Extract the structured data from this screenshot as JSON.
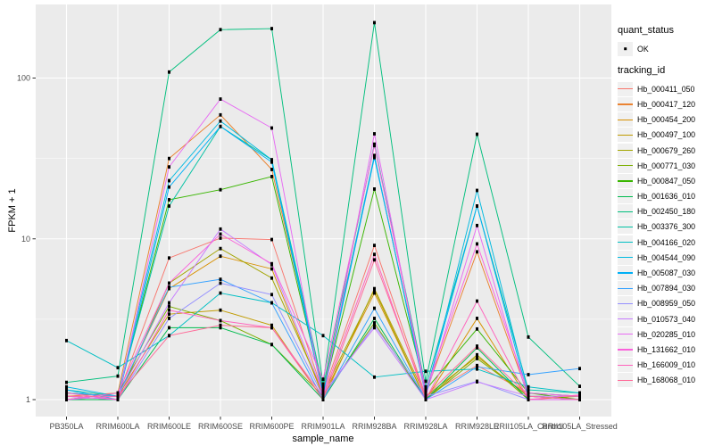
{
  "chart_data": {
    "type": "line",
    "title": "",
    "xlabel": "sample_name",
    "ylabel": "FPKM + 1",
    "yscale": "log10",
    "grid": true,
    "panel_bg": "#EBEBEB",
    "grid_color": "#FFFFFF",
    "tick_label_color": "#4D4D4D",
    "marker": "black-square",
    "ylim": [
      0.78,
      283
    ],
    "yticks": [
      1,
      10,
      100
    ],
    "ytick_labels": [
      "1",
      "10",
      "100"
    ],
    "minor_gridlines": [
      3.1623,
      31.623
    ],
    "legend_position": "right",
    "categories": [
      "PB350LA",
      "RRIM600LA",
      "RRIM600LE",
      "RRIM600SE",
      "RRIM600PE",
      "RRIM901LA",
      "RRIM928BA",
      "RRIM928LA",
      "RRIM928LE",
      "RRII105LA_Control",
      "RRII105LA_Stressed"
    ],
    "legend": {
      "quant_status": {
        "title": "quant_status",
        "items": [
          {
            "label": "OK",
            "marker": "black-point"
          }
        ]
      },
      "tracking": {
        "title": "tracking_id"
      }
    },
    "series": [
      {
        "name": "Hb_000411_050",
        "color": "#F8766D",
        "values": [
          1.1,
          1.05,
          7.6,
          10.1,
          9.9,
          1.1,
          9.1,
          1.05,
          1.63,
          1.1,
          1.05
        ]
      },
      {
        "name": "Hb_000417_120",
        "color": "#EA8331",
        "values": [
          1.05,
          1.1,
          31.6,
          59.0,
          27.0,
          1.15,
          32.4,
          1.1,
          8.3,
          1.05,
          1.0
        ]
      },
      {
        "name": "Hb_000454_200",
        "color": "#D89000",
        "values": [
          1.1,
          1.05,
          4.9,
          7.8,
          6.5,
          1.05,
          4.6,
          1.0,
          3.2,
          1.0,
          1.05
        ]
      },
      {
        "name": "Hb_000497_100",
        "color": "#C09B00",
        "values": [
          1.0,
          1.05,
          3.4,
          3.6,
          2.9,
          1.0,
          4.9,
          1.05,
          1.85,
          1.05,
          1.0
        ]
      },
      {
        "name": "Hb_000679_260",
        "color": "#A3A500",
        "values": [
          1.05,
          1.0,
          5.3,
          8.7,
          5.7,
          1.1,
          4.8,
          1.0,
          1.9,
          1.0,
          1.0
        ]
      },
      {
        "name": "Hb_000771_030",
        "color": "#7CAE00",
        "values": [
          1.0,
          1.1,
          3.8,
          3.1,
          2.2,
          1.05,
          3.0,
          1.0,
          1.8,
          1.05,
          1.05
        ]
      },
      {
        "name": "Hb_000847_050",
        "color": "#39B600",
        "values": [
          1.1,
          1.05,
          17.5,
          20.2,
          24.4,
          1.1,
          20.4,
          1.15,
          2.75,
          1.1,
          1.0
        ]
      },
      {
        "name": "Hb_001636_010",
        "color": "#00BB4E",
        "values": [
          1.0,
          1.0,
          2.8,
          2.8,
          2.2,
          1.0,
          3.2,
          1.0,
          2.1,
          1.0,
          1.0
        ]
      },
      {
        "name": "Hb_002450_180",
        "color": "#00BF7D",
        "values": [
          1.28,
          1.4,
          109,
          200,
          203,
          1.25,
          221,
          1.3,
          44.7,
          2.45,
          1.21
        ]
      },
      {
        "name": "Hb_003376_300",
        "color": "#00C1A3",
        "values": [
          1.15,
          1.05,
          16.0,
          50.0,
          31.0,
          1.2,
          38.8,
          1.2,
          16.0,
          1.15,
          1.1
        ]
      },
      {
        "name": "Hb_004166_020",
        "color": "#00BFC4",
        "values": [
          2.33,
          1.58,
          2.5,
          4.6,
          4.0,
          2.5,
          1.38,
          1.5,
          1.55,
          1.2,
          1.1
        ]
      },
      {
        "name": "Hb_004544_090",
        "color": "#00BAE0",
        "values": [
          1.2,
          1.05,
          23.0,
          54.0,
          31.0,
          1.1,
          33.0,
          1.05,
          20.0,
          1.1,
          1.05
        ]
      },
      {
        "name": "Hb_005087_030",
        "color": "#00B0F6",
        "values": [
          1.15,
          1.0,
          21.0,
          50.0,
          30.0,
          1.05,
          32.0,
          1.1,
          16.0,
          1.05,
          1.0
        ]
      },
      {
        "name": "Hb_007894_030",
        "color": "#35A2FF",
        "values": [
          1.1,
          1.05,
          5.0,
          5.6,
          4.0,
          1.0,
          3.7,
          1.0,
          1.6,
          1.43,
          1.56
        ]
      },
      {
        "name": "Hb_008959_050",
        "color": "#9590FF",
        "values": [
          1.05,
          1.0,
          3.2,
          5.3,
          4.5,
          1.05,
          2.9,
          1.05,
          1.3,
          1.0,
          1.0
        ]
      },
      {
        "name": "Hb_010573_040",
        "color": "#C77CFF",
        "values": [
          1.0,
          1.05,
          4.0,
          11.5,
          6.9,
          1.1,
          2.8,
          1.0,
          1.29,
          1.05,
          1.05
        ]
      },
      {
        "name": "Hb_020285_010",
        "color": "#E76BF3",
        "values": [
          1.05,
          1.0,
          28.0,
          74.0,
          48.9,
          1.0,
          45.0,
          1.05,
          12.1,
          1.0,
          1.0
        ]
      },
      {
        "name": "Hb_131662_010",
        "color": "#FA62DB",
        "values": [
          1.0,
          1.1,
          5.3,
          10.7,
          7.0,
          1.34,
          38.0,
          1.15,
          9.3,
          1.1,
          1.05
        ]
      },
      {
        "name": "Hb_166009_010",
        "color": "#FF62BC",
        "values": [
          1.1,
          1.0,
          3.6,
          3.1,
          2.8,
          1.05,
          8.0,
          1.0,
          4.1,
          1.0,
          1.07
        ]
      },
      {
        "name": "Hb_168068_010",
        "color": "#FF6A98",
        "values": [
          1.05,
          1.05,
          2.5,
          2.9,
          2.8,
          1.0,
          7.4,
          1.05,
          2.15,
          1.05,
          1.0
        ]
      }
    ]
  }
}
